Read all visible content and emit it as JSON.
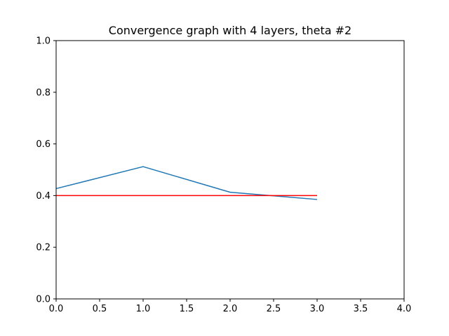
{
  "chart_data": {
    "type": "line",
    "title": "Convergence graph with 4 layers, theta #2",
    "xlabel": "",
    "ylabel": "",
    "xlim": [
      0.0,
      4.0
    ],
    "ylim": [
      0.0,
      1.0
    ],
    "x_ticks": [
      "0.0",
      "0.5",
      "1.0",
      "1.5",
      "2.0",
      "2.5",
      "3.0",
      "3.5",
      "4.0"
    ],
    "y_ticks": [
      "0.0",
      "0.2",
      "0.4",
      "0.6",
      "0.8",
      "1.0"
    ],
    "grid": false,
    "series": [
      {
        "color": "#1f77b4",
        "x": [
          0,
          1,
          2,
          3
        ],
        "y": [
          0.427,
          0.512,
          0.413,
          0.385
        ]
      },
      {
        "color": "#ff0000",
        "x": [
          0,
          3
        ],
        "y": [
          0.4,
          0.4
        ]
      }
    ]
  }
}
